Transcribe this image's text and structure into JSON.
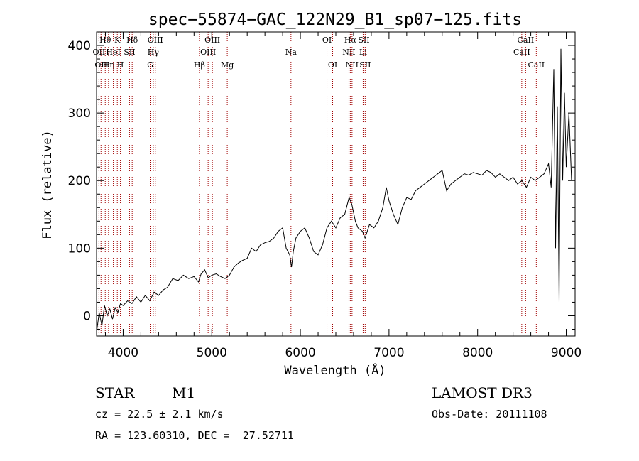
{
  "chart_data": {
    "type": "line",
    "title": "spec−55874−GAC_122N29_B1_sp07−125.fits",
    "xlabel": "Wavelength (Å)",
    "ylabel": "Flux (relative)",
    "xlim": [
      3700,
      9100
    ],
    "ylim": [
      -30,
      420
    ],
    "x_ticks": [
      4000,
      5000,
      6000,
      7000,
      8000,
      9000
    ],
    "y_ticks": [
      0,
      100,
      200,
      300,
      400
    ],
    "grid": false,
    "colors": {
      "spectrum": "#000000",
      "lines": "#a00000"
    },
    "series": [
      {
        "points": [
          [
            3700,
            -25
          ],
          [
            3730,
            5
          ],
          [
            3760,
            -15
          ],
          [
            3790,
            15
          ],
          [
            3820,
            0
          ],
          [
            3850,
            10
          ],
          [
            3880,
            -5
          ],
          [
            3910,
            12
          ],
          [
            3940,
            5
          ],
          [
            3970,
            18
          ],
          [
            4000,
            15
          ],
          [
            4050,
            22
          ],
          [
            4100,
            18
          ],
          [
            4150,
            28
          ],
          [
            4200,
            20
          ],
          [
            4250,
            30
          ],
          [
            4300,
            22
          ],
          [
            4350,
            35
          ],
          [
            4400,
            30
          ],
          [
            4450,
            38
          ],
          [
            4500,
            42
          ],
          [
            4560,
            55
          ],
          [
            4620,
            52
          ],
          [
            4680,
            60
          ],
          [
            4740,
            55
          ],
          [
            4800,
            58
          ],
          [
            4850,
            50
          ],
          [
            4880,
            62
          ],
          [
            4920,
            68
          ],
          [
            4960,
            56
          ],
          [
            5000,
            60
          ],
          [
            5050,
            62
          ],
          [
            5100,
            58
          ],
          [
            5150,
            55
          ],
          [
            5200,
            60
          ],
          [
            5250,
            72
          ],
          [
            5300,
            78
          ],
          [
            5350,
            82
          ],
          [
            5400,
            85
          ],
          [
            5450,
            100
          ],
          [
            5500,
            95
          ],
          [
            5550,
            105
          ],
          [
            5600,
            108
          ],
          [
            5650,
            110
          ],
          [
            5700,
            115
          ],
          [
            5750,
            125
          ],
          [
            5800,
            130
          ],
          [
            5840,
            100
          ],
          [
            5880,
            90
          ],
          [
            5900,
            72
          ],
          [
            5920,
            95
          ],
          [
            5950,
            115
          ],
          [
            6000,
            125
          ],
          [
            6050,
            130
          ],
          [
            6100,
            115
          ],
          [
            6150,
            95
          ],
          [
            6200,
            90
          ],
          [
            6250,
            105
          ],
          [
            6300,
            130
          ],
          [
            6350,
            140
          ],
          [
            6400,
            130
          ],
          [
            6450,
            145
          ],
          [
            6500,
            150
          ],
          [
            6550,
            175
          ],
          [
            6580,
            165
          ],
          [
            6620,
            140
          ],
          [
            6650,
            130
          ],
          [
            6700,
            125
          ],
          [
            6730,
            115
          ],
          [
            6780,
            135
          ],
          [
            6830,
            130
          ],
          [
            6880,
            140
          ],
          [
            6930,
            160
          ],
          [
            6970,
            190
          ],
          [
            7000,
            170
          ],
          [
            7050,
            150
          ],
          [
            7100,
            135
          ],
          [
            7150,
            160
          ],
          [
            7200,
            175
          ],
          [
            7250,
            172
          ],
          [
            7300,
            185
          ],
          [
            7350,
            190
          ],
          [
            7400,
            195
          ],
          [
            7450,
            200
          ],
          [
            7500,
            205
          ],
          [
            7550,
            210
          ],
          [
            7600,
            215
          ],
          [
            7650,
            185
          ],
          [
            7700,
            195
          ],
          [
            7750,
            200
          ],
          [
            7800,
            205
          ],
          [
            7850,
            210
          ],
          [
            7900,
            208
          ],
          [
            7950,
            212
          ],
          [
            8000,
            210
          ],
          [
            8050,
            208
          ],
          [
            8100,
            215
          ],
          [
            8150,
            212
          ],
          [
            8200,
            205
          ],
          [
            8250,
            210
          ],
          [
            8300,
            205
          ],
          [
            8350,
            200
          ],
          [
            8400,
            205
          ],
          [
            8450,
            195
          ],
          [
            8500,
            200
          ],
          [
            8550,
            190
          ],
          [
            8600,
            205
          ],
          [
            8650,
            200
          ],
          [
            8700,
            205
          ],
          [
            8750,
            210
          ],
          [
            8800,
            225
          ],
          [
            8830,
            190
          ],
          [
            8860,
            365
          ],
          [
            8880,
            100
          ],
          [
            8900,
            310
          ],
          [
            8920,
            20
          ],
          [
            8940,
            395
          ],
          [
            8960,
            200
          ],
          [
            8980,
            330
          ],
          [
            9000,
            220
          ],
          [
            9030,
            300
          ],
          [
            9060,
            200
          ]
        ]
      }
    ],
    "lines": [
      {
        "wave": 3727,
        "label": "OII",
        "row": 2
      },
      {
        "wave": 3750,
        "label": "OII",
        "row": 3
      },
      {
        "wave": 3798,
        "label": "Hθ",
        "row": 1
      },
      {
        "wave": 3835,
        "label": "Hη",
        "row": 3
      },
      {
        "wave": 3889,
        "label": "HeI",
        "row": 2
      },
      {
        "wave": 3934,
        "label": "K",
        "row": 1
      },
      {
        "wave": 3969,
        "label": "H",
        "row": 3
      },
      {
        "wave": 4072,
        "label": "SII",
        "row": 2
      },
      {
        "wave": 4102,
        "label": "Hδ",
        "row": 1
      },
      {
        "wave": 4305,
        "label": "G",
        "row": 3
      },
      {
        "wave": 4340,
        "label": "Hγ",
        "row": 2
      },
      {
        "wave": 4363,
        "label": "OIII",
        "row": 1
      },
      {
        "wave": 4861,
        "label": "Hβ",
        "row": 3
      },
      {
        "wave": 4959,
        "label": "OIII",
        "row": 2
      },
      {
        "wave": 5007,
        "label": "OIII",
        "row": 1
      },
      {
        "wave": 5175,
        "label": "Mg",
        "row": 3
      },
      {
        "wave": 5894,
        "label": "Na",
        "row": 2
      },
      {
        "wave": 6300,
        "label": "OI",
        "row": 1
      },
      {
        "wave": 6364,
        "label": "OI",
        "row": 3
      },
      {
        "wave": 6548,
        "label": "NII",
        "row": 2
      },
      {
        "wave": 6563,
        "label": "Hα",
        "row": 1
      },
      {
        "wave": 6583,
        "label": "NII",
        "row": 3
      },
      {
        "wave": 6708,
        "label": "Li",
        "row": 2
      },
      {
        "wave": 6716,
        "label": "SII",
        "row": 1
      },
      {
        "wave": 6731,
        "label": "SII",
        "row": 3
      },
      {
        "wave": 8498,
        "label": "CaII",
        "row": 2
      },
      {
        "wave": 8542,
        "label": "CaII",
        "row": 1
      },
      {
        "wave": 8662,
        "label": "CaII",
        "row": 3
      }
    ]
  },
  "info": {
    "object_class": "STAR",
    "subclass": "M1",
    "survey": "LAMOST DR3",
    "redshift": "cz = 22.5 ± 2.1 km/s",
    "obs_date": "Obs-Date: 20111108",
    "coords": "RA = 123.60310, DEC =  27.52711"
  }
}
